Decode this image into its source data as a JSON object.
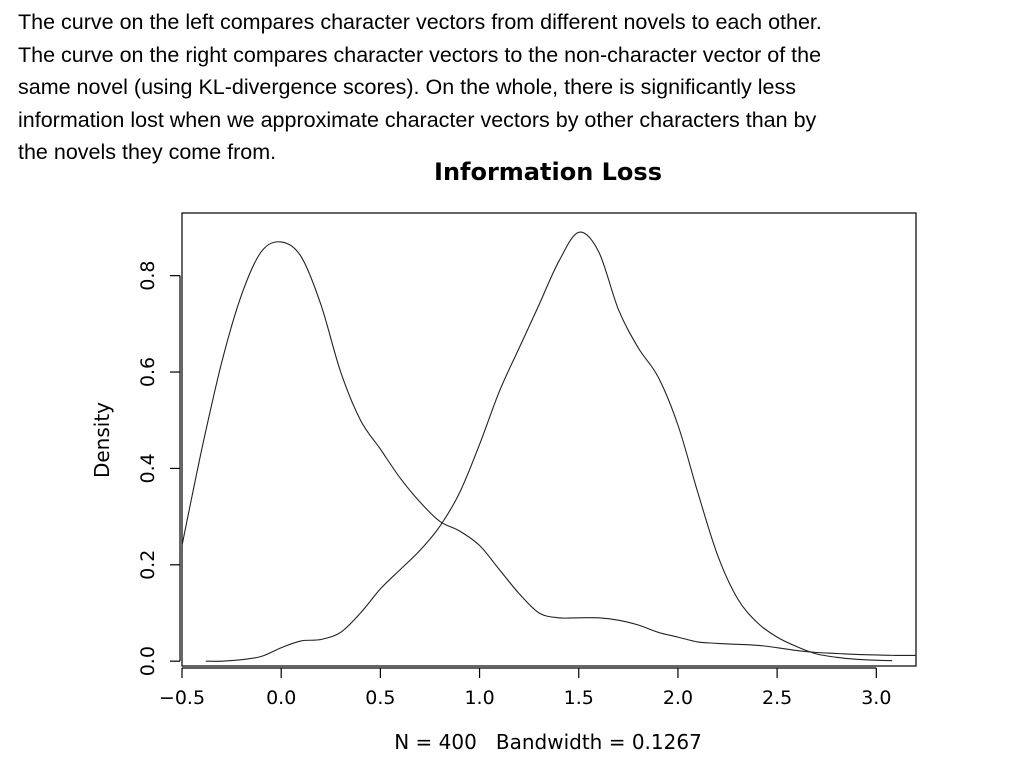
{
  "caption": {
    "lines": [
      "The curve on the left compares character vectors from different novels to each other.",
      "The curve on the right compares character vectors to the non-character vector of the",
      "same novel (using KL-divergence scores). On the whole, there is significantly less",
      "information lost when we approximate character vectors by other characters than by",
      "the novels they come from."
    ]
  },
  "chart_data": {
    "type": "line",
    "title": "Information Loss",
    "xlabel": "N = 400   Bandwidth = 0.1267",
    "ylabel": "Density",
    "xlim": [
      -0.5,
      3.2
    ],
    "ylim": [
      -0.01,
      0.93
    ],
    "xticks": [
      -0.5,
      0.0,
      0.5,
      1.0,
      1.5,
      2.0,
      2.5,
      3.0
    ],
    "xtick_labels": [
      "−0.5",
      "0.0",
      "0.5",
      "1.0",
      "1.5",
      "2.0",
      "2.5",
      "3.0"
    ],
    "yticks": [
      0.0,
      0.2,
      0.4,
      0.6,
      0.8
    ],
    "ytick_labels": [
      "0.0",
      "0.2",
      "0.4",
      "0.6",
      "0.8"
    ],
    "grid": false,
    "legend": "none",
    "series": [
      {
        "x": [
          -0.5,
          -0.4,
          -0.3,
          -0.2,
          -0.1,
          0.0,
          0.1,
          0.2,
          0.3,
          0.4,
          0.5,
          0.6,
          0.7,
          0.8,
          0.9,
          1.0,
          1.1,
          1.2,
          1.3,
          1.4,
          1.5,
          1.6,
          1.7,
          1.8,
          1.9,
          2.0,
          2.1,
          2.2,
          2.3,
          2.4,
          2.5,
          2.6,
          2.7,
          2.8,
          2.9,
          3.0,
          3.1,
          3.2
        ],
        "values": [
          0.24,
          0.44,
          0.62,
          0.76,
          0.85,
          0.87,
          0.84,
          0.74,
          0.6,
          0.5,
          0.44,
          0.38,
          0.33,
          0.29,
          0.27,
          0.24,
          0.19,
          0.14,
          0.1,
          0.09,
          0.09,
          0.09,
          0.085,
          0.075,
          0.06,
          0.05,
          0.04,
          0.037,
          0.035,
          0.033,
          0.028,
          0.022,
          0.018,
          0.016,
          0.014,
          0.013,
          0.012,
          0.012
        ]
      },
      {
        "x": [
          -0.38,
          -0.3,
          -0.2,
          -0.1,
          0.0,
          0.1,
          0.2,
          0.3,
          0.4,
          0.5,
          0.6,
          0.7,
          0.8,
          0.9,
          1.0,
          1.1,
          1.2,
          1.3,
          1.4,
          1.5,
          1.6,
          1.7,
          1.8,
          1.9,
          2.0,
          2.1,
          2.2,
          2.3,
          2.4,
          2.5,
          2.6,
          2.7,
          2.8,
          2.9,
          3.0,
          3.08
        ],
        "values": [
          0.0,
          0.0,
          0.003,
          0.01,
          0.028,
          0.042,
          0.045,
          0.06,
          0.1,
          0.15,
          0.19,
          0.23,
          0.28,
          0.35,
          0.45,
          0.56,
          0.65,
          0.74,
          0.83,
          0.89,
          0.85,
          0.73,
          0.65,
          0.59,
          0.49,
          0.35,
          0.22,
          0.13,
          0.08,
          0.05,
          0.03,
          0.015,
          0.008,
          0.004,
          0.002,
          0.001
        ]
      }
    ]
  }
}
